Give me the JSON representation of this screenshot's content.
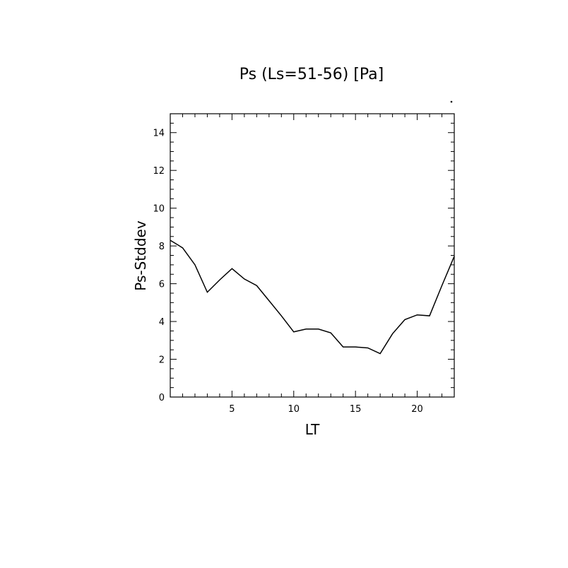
{
  "chart_data": {
    "type": "line",
    "title": "Ps (Ls=51-56) [Pa]",
    "xlabel": "LT",
    "ylabel": "Ps-Stddev",
    "xlim": [
      0,
      23
    ],
    "ylim": [
      0,
      15
    ],
    "xticks": [
      5,
      10,
      15,
      20
    ],
    "yticks": [
      0,
      2,
      4,
      6,
      8,
      10,
      12,
      14
    ],
    "grid": false,
    "series": [
      {
        "x": [
          0,
          1,
          2,
          3,
          4,
          5,
          6,
          7,
          8,
          9,
          10,
          11,
          12,
          13,
          14,
          15,
          16,
          17,
          18,
          19,
          20,
          21,
          22,
          23
        ],
        "values": [
          8.3,
          7.9,
          7.0,
          5.55,
          6.2,
          6.8,
          6.25,
          5.9,
          5.1,
          4.3,
          3.45,
          3.6,
          3.6,
          3.4,
          2.65,
          2.65,
          2.6,
          2.3,
          3.35,
          4.1,
          4.35,
          4.3,
          5.9,
          7.45
        ]
      }
    ]
  }
}
